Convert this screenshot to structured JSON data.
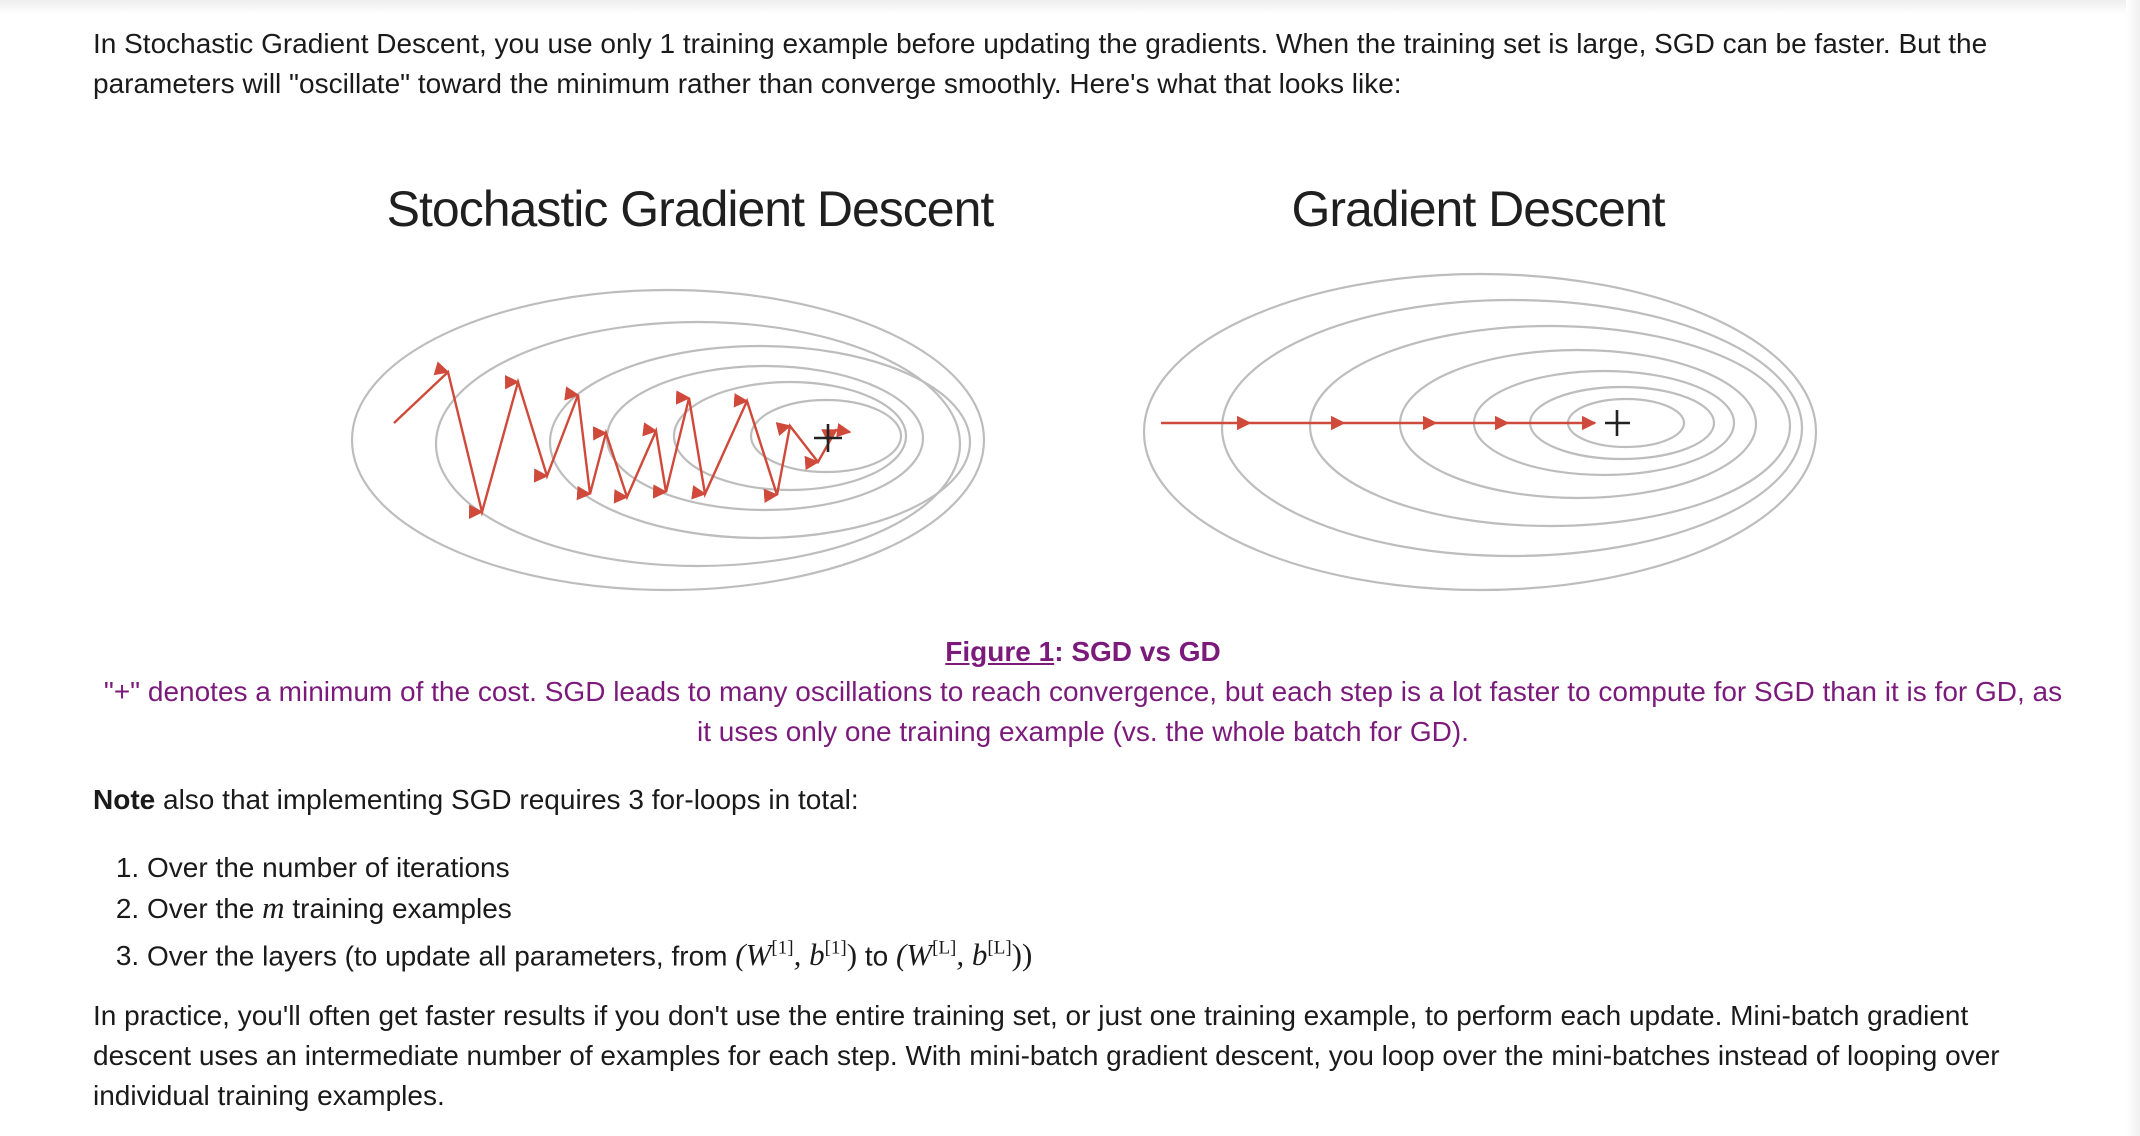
{
  "intro": {
    "text": "In Stochastic Gradient Descent, you use only 1 training example before updating the gradients. When the training set is large, SGD can be faster. But the parameters will \"oscillate\" toward the minimum rather than converge smoothly. Here's what that looks like:"
  },
  "figure": {
    "left_title": "Stochastic Gradient Descent",
    "right_title": "Gradient Descent",
    "minimum_marker": "+",
    "path_color": "#cf4a3b",
    "contour_color": "#bdbdbd"
  },
  "caption": {
    "link": "Figure 1",
    "suffix": ": SGD vs GD",
    "text": "\"+\" denotes a minimum of the cost. SGD leads to many oscillations to reach convergence, but each step is a lot faster to compute for SGD than it is for GD, as it uses only one training example (vs. the whole batch for GD).",
    "color": "#7b1a7b"
  },
  "note": {
    "bold": "Note",
    "text": " also that implementing SGD requires 3 for-loops in total:"
  },
  "loops": {
    "item1": "Over the number of iterations",
    "item2_before": "Over the ",
    "item2_var": "m",
    "item2_after": " training examples",
    "item3_before": "Over the layers (to update all parameters, from ",
    "item3_math_start": "(W",
    "item3_sup_1a": "[1]",
    "item3_math_mid1": ", b",
    "item3_sup_1b": "[1]",
    "item3_math_end1": ")",
    "item3_middle": " to ",
    "item3_math_start2": "(W",
    "item3_sup_La": "[L]",
    "item3_math_mid2": ", b",
    "item3_sup_Lb": "[L]",
    "item3_math_end2": "))"
  },
  "practice": {
    "text": "In practice, you'll often get faster results if you don't use the entire training set, or just one training example, to perform each update. Mini-batch gradient descent uses an intermediate number of examples for each step. With mini-batch gradient descent, you loop over the mini-batches instead of looping over individual training examples."
  }
}
